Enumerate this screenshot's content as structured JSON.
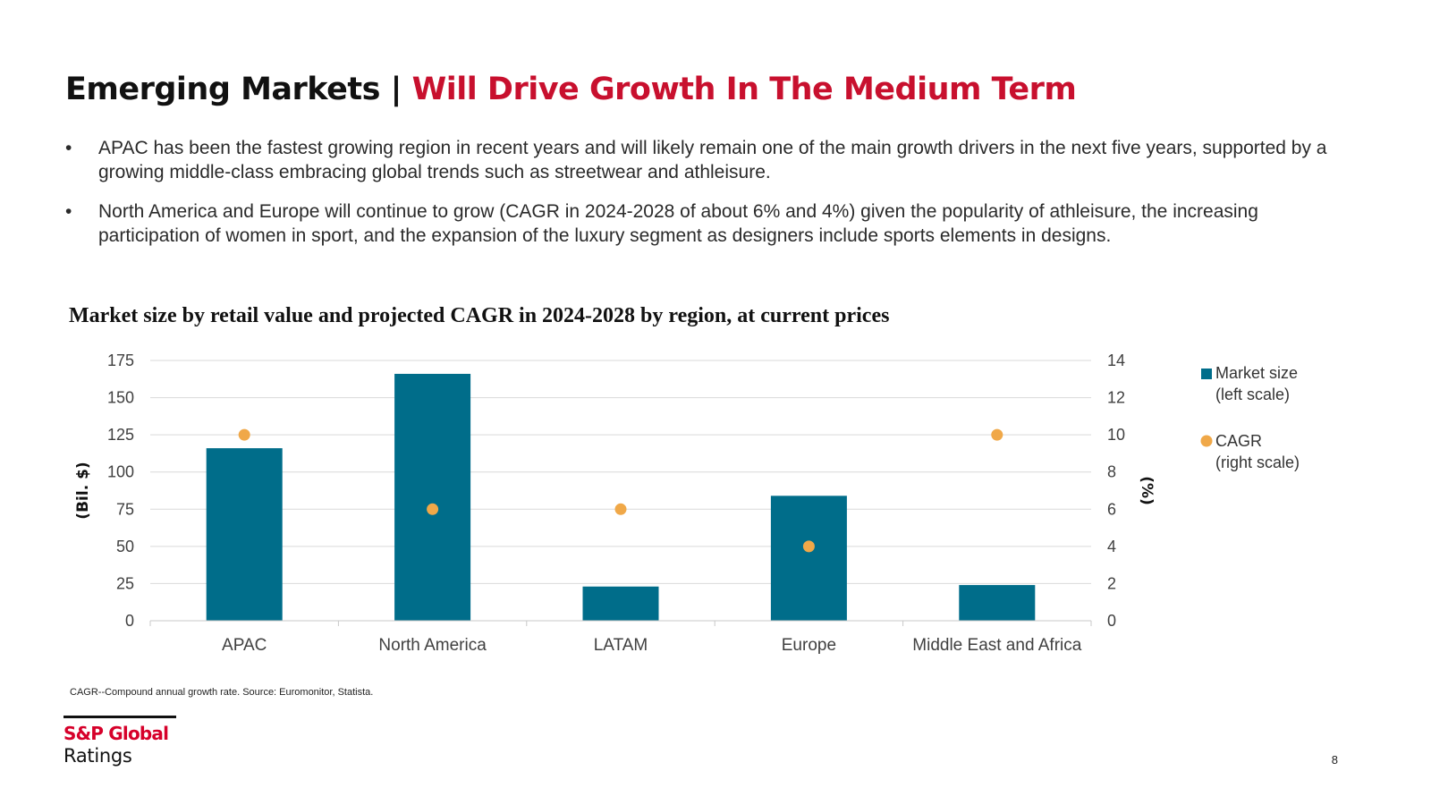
{
  "header": {
    "title_main": "Emerging Markets",
    "title_separator": "|",
    "title_accent": "Will Drive Growth In The Medium Term"
  },
  "bullets": [
    "APAC has been the fastest growing region in recent years and will likely remain one of the main growth drivers in the next five years, supported by a growing middle-class embracing global trends such as streetwear and athleisure.",
    "North America and Europe will continue to grow (CAGR in 2024-2028 of about 6% and 4%) given the popularity of athleisure, the increasing participation of women in sport, and the expansion of the luxury segment as designers include sports elements in designs."
  ],
  "bullet_symbol": "•",
  "chart_data": {
    "type": "bar",
    "title": "Market size by retail value and projected CAGR in 2024-2028 by region, at current prices",
    "categories": [
      "APAC",
      "North America",
      "LATAM",
      "Europe",
      "Middle East and Africa"
    ],
    "series": [
      {
        "name": "Market size (left scale)",
        "legend_lines": [
          "Market size",
          "(left scale)"
        ],
        "type": "bar",
        "axis": "left",
        "color": "#006d8a",
        "values": [
          116,
          166,
          23,
          84,
          24
        ]
      },
      {
        "name": "CAGR (right scale)",
        "legend_lines": [
          "CAGR",
          "(right scale)"
        ],
        "type": "scatter",
        "axis": "right",
        "color": "#f0a848",
        "values": [
          10,
          6,
          6,
          4,
          10
        ]
      }
    ],
    "ylabel": "(Bil. $)",
    "ylim": [
      0,
      175
    ],
    "yticks": [
      0,
      25,
      50,
      75,
      100,
      125,
      150,
      175
    ],
    "y2label": "(%)",
    "y2lim": [
      0,
      14
    ],
    "y2ticks": [
      0,
      2,
      4,
      6,
      8,
      10,
      12,
      14
    ],
    "grid": true,
    "legend_position": "right"
  },
  "footnote": "CAGR--Compound annual growth rate. Source: Euromonitor, Statista.",
  "logo": {
    "brand": "S&P Global",
    "sub": "Ratings"
  },
  "page_number": "8",
  "colors": {
    "accent": "#c8102e",
    "bar": "#006d8a",
    "marker": "#f0a848"
  }
}
